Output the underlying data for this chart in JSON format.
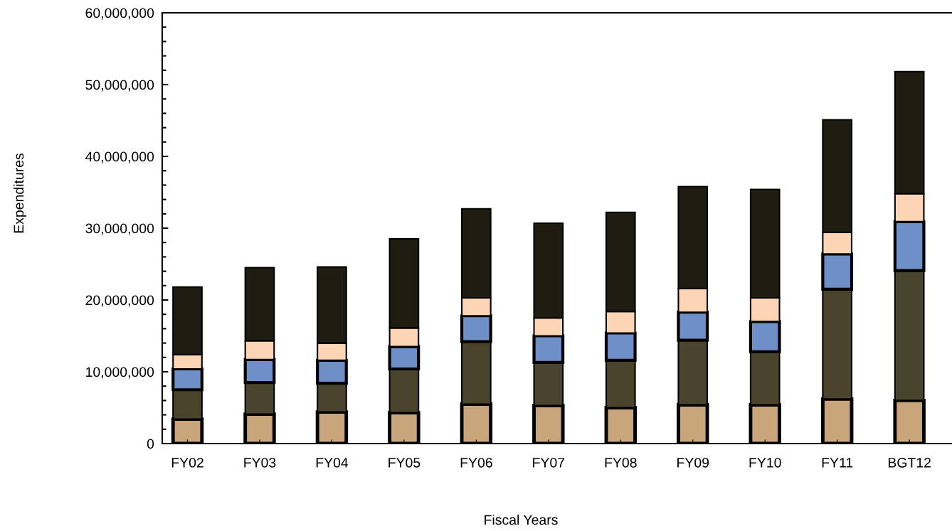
{
  "chart_data": {
    "type": "bar",
    "stacked": true,
    "xlabel": "Fiscal Years",
    "ylabel": "Expenditures",
    "categories": [
      "FY02",
      "FY03",
      "FY04",
      "FY05",
      "FY06",
      "FY07",
      "FY08",
      "FY09",
      "FY10",
      "FY11",
      "BGT12"
    ],
    "series": [
      {
        "color": "#c8a57a",
        "values": [
          3400000,
          4100000,
          4400000,
          4300000,
          5500000,
          5300000,
          5000000,
          5400000,
          5400000,
          6200000,
          6000000
        ]
      },
      {
        "color": "#4a442c",
        "values": [
          4100000,
          4400000,
          4000000,
          6100000,
          8700000,
          6000000,
          6600000,
          9000000,
          7400000,
          15300000,
          18100000
        ]
      },
      {
        "color": "#6f8fc8",
        "values": [
          2900000,
          3200000,
          3200000,
          3100000,
          3600000,
          3700000,
          3800000,
          3900000,
          4200000,
          4900000,
          6800000
        ]
      },
      {
        "color": "#fcd5b4",
        "values": [
          2000000,
          2600000,
          2400000,
          2600000,
          2500000,
          2500000,
          3000000,
          3300000,
          3300000,
          3000000,
          3900000
        ]
      },
      {
        "color": "#1f1c12",
        "values": [
          9400000,
          10200000,
          10600000,
          12400000,
          12400000,
          13200000,
          13800000,
          14200000,
          15100000,
          15700000,
          17000000
        ]
      }
    ],
    "ylim": [
      0,
      60000000
    ],
    "yticks": [
      {
        "value": 0,
        "label": "0"
      },
      {
        "value": 10000000,
        "label": "10,000,000"
      },
      {
        "value": 20000000,
        "label": "20,000,000"
      },
      {
        "value": 30000000,
        "label": "30,000,000"
      },
      {
        "value": 40000000,
        "label": "40,000,000"
      },
      {
        "value": 50000000,
        "label": "50,000,000"
      },
      {
        "value": 60000000,
        "label": "60,000,000"
      }
    ],
    "grid": false
  }
}
